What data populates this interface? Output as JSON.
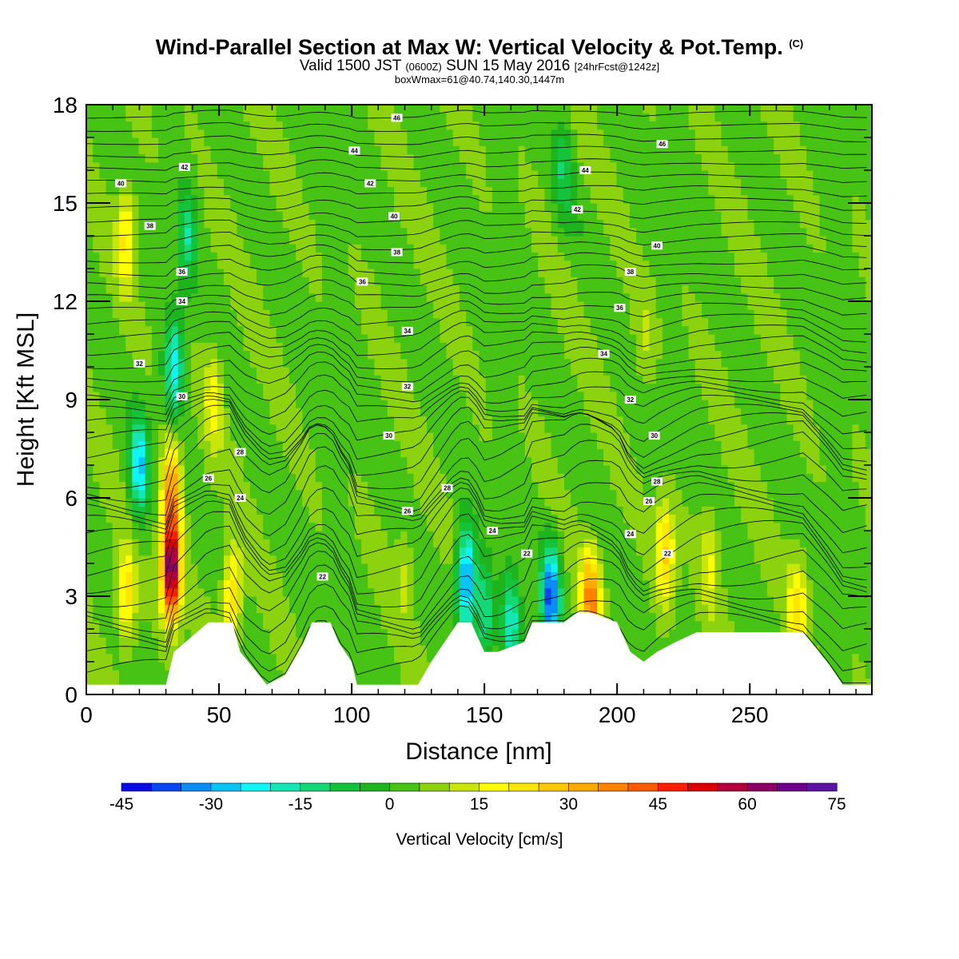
{
  "title": {
    "main": "Wind-Parallel Section at Max W: Vertical Velocity & Pot.Temp.",
    "copyright": "(C)",
    "valid_prefix": "Valid 1500 JST",
    "valid_z": "(0600Z)",
    "valid_date": "SUN 15 May 2016",
    "valid_fcst": "[24hrFcst@1242z]",
    "box": "boxWmax=61@40.74,140.30,1447m"
  },
  "chart_data": {
    "type": "heatmap",
    "xlabel": "Distance [nm]",
    "ylabel": "Height [Kft MSL]",
    "xlim": [
      0,
      296
    ],
    "ylim": [
      0,
      18
    ],
    "x_ticks": [
      0,
      50,
      100,
      150,
      200,
      250
    ],
    "y_ticks": [
      0,
      3,
      6,
      9,
      12,
      15,
      18
    ],
    "colorbar": {
      "label": "Vertical Velocity [cm/s]",
      "range": [
        -45,
        75
      ],
      "step": 5,
      "tick_values": [
        -45,
        -30,
        -15,
        0,
        15,
        30,
        45,
        60,
        75
      ],
      "tick_labels": [
        "-45",
        "-30",
        "-15",
        "0",
        "15",
        "30",
        "45",
        "60",
        "75"
      ],
      "colors": [
        "#0a0ae6",
        "#0a46f0",
        "#0a8cf5",
        "#0ac3f5",
        "#0ff5f5",
        "#14e6b4",
        "#14d778",
        "#14c33c",
        "#1eb41e",
        "#46c314",
        "#8cd20f",
        "#c8e60a",
        "#ffff00",
        "#ffe600",
        "#ffc800",
        "#ffaa00",
        "#ff8200",
        "#ff5a00",
        "#ff1e00",
        "#dc0000",
        "#b4003c",
        "#8c0064",
        "#6e008c",
        "#5a14a0"
      ]
    },
    "terrain": {
      "units": "distance nm / height kft",
      "x": [
        0,
        30,
        33,
        46,
        55,
        58,
        65,
        68,
        75,
        82,
        85,
        92,
        95,
        100,
        102,
        105,
        125,
        130,
        140,
        145,
        150,
        155,
        165,
        168,
        175,
        180,
        185,
        190,
        200,
        205,
        210,
        215,
        222,
        230,
        255,
        270,
        280,
        285,
        296
      ],
      "height": [
        0.3,
        0.3,
        1.3,
        2.2,
        2.2,
        1.3,
        0.6,
        0.3,
        0.6,
        1.6,
        2.2,
        2.2,
        1.6,
        1.0,
        0.3,
        0.3,
        0.3,
        1.0,
        2.2,
        2.2,
        1.3,
        1.3,
        1.6,
        2.2,
        2.2,
        2.2,
        2.5,
        2.5,
        2.2,
        1.3,
        1.0,
        1.3,
        1.6,
        1.9,
        1.9,
        1.9,
        0.9,
        0.3,
        0.3
      ]
    },
    "vertical_velocity_cells": [
      {
        "x": 32,
        "z": 3.8,
        "w": 62
      },
      {
        "x": 32,
        "z": 6.3,
        "w": 30
      },
      {
        "x": 15,
        "z": 3.0,
        "w": 20
      },
      {
        "x": 15,
        "z": 14.0,
        "w": 18
      },
      {
        "x": 48,
        "z": 9.0,
        "w": 14
      },
      {
        "x": 55,
        "z": 3.0,
        "w": 22
      },
      {
        "x": 20,
        "z": 7.0,
        "w": -30
      },
      {
        "x": 33,
        "z": 10.0,
        "w": -28
      },
      {
        "x": 38,
        "z": 14.0,
        "w": -18
      },
      {
        "x": 143,
        "z": 3.5,
        "w": -40
      },
      {
        "x": 150,
        "z": 2.5,
        "w": -20
      },
      {
        "x": 160,
        "z": 2.2,
        "w": -25
      },
      {
        "x": 175,
        "z": 3.0,
        "w": -42
      },
      {
        "x": 190,
        "z": 2.9,
        "w": 32
      },
      {
        "x": 218,
        "z": 4.3,
        "w": 22
      },
      {
        "x": 235,
        "z": 4.0,
        "w": 12
      },
      {
        "x": 268,
        "z": 2.6,
        "w": 18
      },
      {
        "x": 120,
        "z": 4.0,
        "w": 8
      },
      {
        "x": 180,
        "z": 16.0,
        "w": -12
      },
      {
        "x": 210,
        "z": 11.0,
        "w": 6
      }
    ],
    "theta_contour_labels": [
      {
        "x": 117,
        "z": 17.6,
        "label": "46"
      },
      {
        "x": 217,
        "z": 16.8,
        "label": "46"
      },
      {
        "x": 101,
        "z": 16.6,
        "label": "44"
      },
      {
        "x": 188,
        "z": 16.0,
        "label": "44"
      },
      {
        "x": 37,
        "z": 16.1,
        "label": "42"
      },
      {
        "x": 107,
        "z": 15.6,
        "label": "42"
      },
      {
        "x": 185,
        "z": 14.8,
        "label": "42"
      },
      {
        "x": 13,
        "z": 15.6,
        "label": "40"
      },
      {
        "x": 116,
        "z": 14.6,
        "label": "40"
      },
      {
        "x": 215,
        "z": 13.7,
        "label": "40"
      },
      {
        "x": 24,
        "z": 14.3,
        "label": "38"
      },
      {
        "x": 117,
        "z": 13.5,
        "label": "38"
      },
      {
        "x": 205,
        "z": 12.9,
        "label": "38"
      },
      {
        "x": 36,
        "z": 12.9,
        "label": "36"
      },
      {
        "x": 104,
        "z": 12.6,
        "label": "36"
      },
      {
        "x": 201,
        "z": 11.8,
        "label": "36"
      },
      {
        "x": 36,
        "z": 12.0,
        "label": "34"
      },
      {
        "x": 121,
        "z": 11.1,
        "label": "34"
      },
      {
        "x": 195,
        "z": 10.4,
        "label": "34"
      },
      {
        "x": 20,
        "z": 10.1,
        "label": "32"
      },
      {
        "x": 121,
        "z": 9.4,
        "label": "32"
      },
      {
        "x": 205,
        "z": 9.0,
        "label": "32"
      },
      {
        "x": 36,
        "z": 9.1,
        "label": "30"
      },
      {
        "x": 114,
        "z": 7.9,
        "label": "30"
      },
      {
        "x": 214,
        "z": 7.9,
        "label": "30"
      },
      {
        "x": 58,
        "z": 7.4,
        "label": "28"
      },
      {
        "x": 136,
        "z": 6.3,
        "label": "28"
      },
      {
        "x": 215,
        "z": 6.5,
        "label": "28"
      },
      {
        "x": 46,
        "z": 6.6,
        "label": "26"
      },
      {
        "x": 121,
        "z": 5.6,
        "label": "26"
      },
      {
        "x": 212,
        "z": 5.9,
        "label": "26"
      },
      {
        "x": 58,
        "z": 6.0,
        "label": "24"
      },
      {
        "x": 153,
        "z": 5.0,
        "label": "24"
      },
      {
        "x": 205,
        "z": 4.9,
        "label": "24"
      },
      {
        "x": 89,
        "z": 3.6,
        "label": "22"
      },
      {
        "x": 166,
        "z": 4.3,
        "label": "22"
      },
      {
        "x": 219,
        "z": 4.3,
        "label": "22"
      }
    ]
  }
}
